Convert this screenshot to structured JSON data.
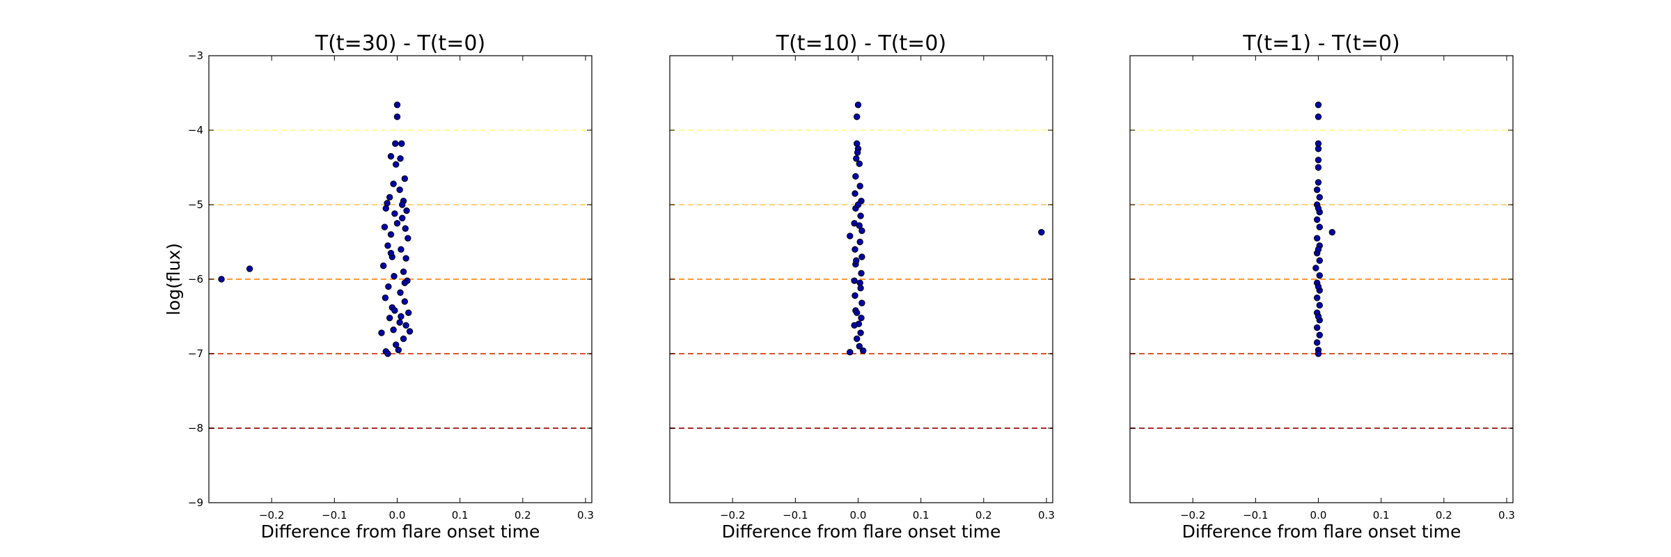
{
  "chart_data": [
    {
      "type": "scatter",
      "title": "T(t=30) - T(t=0)",
      "xlabel": "Difference from flare onset time",
      "ylabel": "log(flux)",
      "xlim": [
        -0.3,
        0.31
      ],
      "ylim": [
        -9,
        -3
      ],
      "xticks": [
        -0.2,
        -0.1,
        0.0,
        0.1,
        0.2,
        0.3
      ],
      "xtick_labels": [
        "−0.2",
        "−0.1",
        "0.0",
        "0.1",
        "0.2",
        "0.3"
      ],
      "yticks": [
        -9,
        -8,
        -7,
        -6,
        -5,
        -4,
        -3
      ],
      "ytick_labels": [
        "−9",
        "−8",
        "−7",
        "−6",
        "−5",
        "−4",
        "−3"
      ],
      "hlines": [
        {
          "y": -4,
          "color": "#ffff99"
        },
        {
          "y": -5,
          "color": "#ffd27a"
        },
        {
          "y": -6,
          "color": "#ff9933"
        },
        {
          "y": -7,
          "color": "#d9542b"
        },
        {
          "y": -8,
          "color": "#a52a2a"
        }
      ],
      "marker_color": "#0000aa",
      "points": [
        [
          -0.28,
          -6.0
        ],
        [
          -0.235,
          -5.86
        ],
        [
          0.0,
          -3.66
        ],
        [
          0.0,
          -3.82
        ],
        [
          -0.003,
          -4.18
        ],
        [
          0.007,
          -4.18
        ],
        [
          -0.01,
          -4.35
        ],
        [
          0.005,
          -4.38
        ],
        [
          -0.002,
          -4.46
        ],
        [
          0.012,
          -4.65
        ],
        [
          -0.006,
          -4.72
        ],
        [
          0.004,
          -4.8
        ],
        [
          -0.012,
          -4.9
        ],
        [
          0.01,
          -4.95
        ],
        [
          -0.018,
          -5.05
        ],
        [
          0.015,
          -5.08
        ],
        [
          -0.004,
          -5.12
        ],
        [
          0.008,
          -5.18
        ],
        [
          -0.02,
          -5.3
        ],
        [
          0.013,
          -5.32
        ],
        [
          -0.01,
          -5.4
        ],
        [
          0.017,
          -5.45
        ],
        [
          -0.015,
          -5.55
        ],
        [
          0.006,
          -5.6
        ],
        [
          -0.008,
          -5.7
        ],
        [
          0.014,
          -5.72
        ],
        [
          -0.022,
          -5.82
        ],
        [
          0.01,
          -5.9
        ],
        [
          -0.005,
          -5.96
        ],
        [
          0.016,
          -6.02
        ],
        [
          -0.014,
          -6.1
        ],
        [
          0.005,
          -6.18
        ],
        [
          -0.019,
          -6.25
        ],
        [
          0.012,
          -6.3
        ],
        [
          -0.008,
          -6.38
        ],
        [
          0.018,
          -6.45
        ],
        [
          -0.012,
          -6.52
        ],
        [
          0.004,
          -6.58
        ],
        [
          0.014,
          -6.62
        ],
        [
          -0.006,
          -6.68
        ],
        [
          0.02,
          -6.7
        ],
        [
          -0.025,
          -6.72
        ],
        [
          0.01,
          -6.8
        ],
        [
          -0.002,
          -6.88
        ],
        [
          -0.018,
          -6.97
        ],
        [
          -0.015,
          -7.0
        ],
        [
          0.002,
          -6.95
        ],
        [
          0.008,
          -5.0
        ],
        [
          -0.016,
          -4.98
        ],
        [
          0.0,
          -5.25
        ],
        [
          -0.01,
          -5.65
        ],
        [
          0.012,
          -6.05
        ],
        [
          -0.004,
          -6.42
        ],
        [
          0.006,
          -6.5
        ]
      ]
    },
    {
      "type": "scatter",
      "title": "T(t=10) - T(t=0)",
      "xlabel": "Difference from flare onset time",
      "ylabel": "",
      "xlim": [
        -0.3,
        0.31
      ],
      "ylim": [
        -9,
        -3
      ],
      "xticks": [
        -0.2,
        -0.1,
        0.0,
        0.1,
        0.2,
        0.3
      ],
      "xtick_labels": [
        "−0.2",
        "−0.1",
        "0.0",
        "0.1",
        "0.2",
        "0.3"
      ],
      "yticks": [
        -9,
        -8,
        -7,
        -6,
        -5,
        -4,
        -3
      ],
      "ytick_labels": [],
      "hlines": [
        {
          "y": -4,
          "color": "#ffff99"
        },
        {
          "y": -5,
          "color": "#ffd27a"
        },
        {
          "y": -6,
          "color": "#ff9933"
        },
        {
          "y": -7,
          "color": "#d9542b"
        },
        {
          "y": -8,
          "color": "#a52a2a"
        }
      ],
      "marker_color": "#0000aa",
      "points": [
        [
          0.0,
          -3.66
        ],
        [
          -0.002,
          -3.82
        ],
        [
          -0.002,
          -4.18
        ],
        [
          0.0,
          -4.25
        ],
        [
          -0.003,
          -4.38
        ],
        [
          0.002,
          -4.45
        ],
        [
          -0.004,
          -4.62
        ],
        [
          0.003,
          -4.75
        ],
        [
          -0.005,
          -4.85
        ],
        [
          0.005,
          -4.95
        ],
        [
          -0.004,
          -5.05
        ],
        [
          0.004,
          -5.15
        ],
        [
          -0.006,
          -5.25
        ],
        [
          0.006,
          -5.35
        ],
        [
          -0.013,
          -5.42
        ],
        [
          0.003,
          -5.5
        ],
        [
          -0.005,
          -5.6
        ],
        [
          0.006,
          -5.7
        ],
        [
          -0.004,
          -5.8
        ],
        [
          0.005,
          -5.92
        ],
        [
          -0.006,
          -6.02
        ],
        [
          0.004,
          -6.12
        ],
        [
          -0.005,
          -6.22
        ],
        [
          0.006,
          -6.32
        ],
        [
          -0.004,
          -6.42
        ],
        [
          0.005,
          -6.52
        ],
        [
          -0.006,
          -6.62
        ],
        [
          0.004,
          -6.72
        ],
        [
          -0.002,
          -6.8
        ],
        [
          0.002,
          -6.9
        ],
        [
          -0.013,
          -6.98
        ],
        [
          0.008,
          -6.96
        ],
        [
          0.292,
          -5.37
        ],
        [
          0.0,
          -5.0
        ],
        [
          0.002,
          -5.28
        ],
        [
          -0.003,
          -5.75
        ],
        [
          0.003,
          -6.05
        ],
        [
          -0.002,
          -6.45
        ],
        [
          0.001,
          -6.6
        ],
        [
          -0.001,
          -4.3
        ]
      ]
    },
    {
      "type": "scatter",
      "title": "T(t=1) - T(t=0)",
      "xlabel": "Difference from flare onset time",
      "ylabel": "",
      "xlim": [
        -0.3,
        0.31
      ],
      "ylim": [
        -9,
        -3
      ],
      "xticks": [
        -0.2,
        -0.1,
        0.0,
        0.1,
        0.2,
        0.3
      ],
      "xtick_labels": [
        "−0.2",
        "−0.1",
        "0.0",
        "0.1",
        "0.2",
        "0.3"
      ],
      "yticks": [
        -9,
        -8,
        -7,
        -6,
        -5,
        -4,
        -3
      ],
      "ytick_labels": [],
      "hlines": [
        {
          "y": -4,
          "color": "#ffff99"
        },
        {
          "y": -5,
          "color": "#ffd27a"
        },
        {
          "y": -6,
          "color": "#ff9933"
        },
        {
          "y": -7,
          "color": "#d9542b"
        },
        {
          "y": -8,
          "color": "#a52a2a"
        }
      ],
      "marker_color": "#0000aa",
      "points": [
        [
          0.0,
          -3.66
        ],
        [
          0.0,
          -3.82
        ],
        [
          0.0,
          -4.18
        ],
        [
          0.0,
          -4.25
        ],
        [
          0.0,
          -4.4
        ],
        [
          0.0,
          -4.5
        ],
        [
          0.0,
          -4.7
        ],
        [
          -0.002,
          -4.8
        ],
        [
          0.002,
          -4.9
        ],
        [
          -0.002,
          -5.0
        ],
        [
          0.002,
          -5.1
        ],
        [
          -0.002,
          -5.2
        ],
        [
          0.002,
          -5.3
        ],
        [
          0.022,
          -5.37
        ],
        [
          -0.002,
          -5.45
        ],
        [
          0.002,
          -5.55
        ],
        [
          -0.002,
          -5.65
        ],
        [
          0.002,
          -5.75
        ],
        [
          -0.004,
          -5.85
        ],
        [
          0.002,
          -5.95
        ],
        [
          -0.002,
          -6.05
        ],
        [
          0.002,
          -6.15
        ],
        [
          -0.002,
          -6.25
        ],
        [
          0.002,
          -6.35
        ],
        [
          -0.002,
          -6.45
        ],
        [
          0.002,
          -6.55
        ],
        [
          -0.002,
          -6.65
        ],
        [
          0.002,
          -6.75
        ],
        [
          -0.002,
          -6.85
        ],
        [
          0.0,
          -6.95
        ],
        [
          0.0,
          -7.0
        ],
        [
          0.0,
          -5.05
        ],
        [
          0.0,
          -5.6
        ],
        [
          0.0,
          -6.1
        ],
        [
          0.0,
          -6.5
        ]
      ]
    }
  ]
}
